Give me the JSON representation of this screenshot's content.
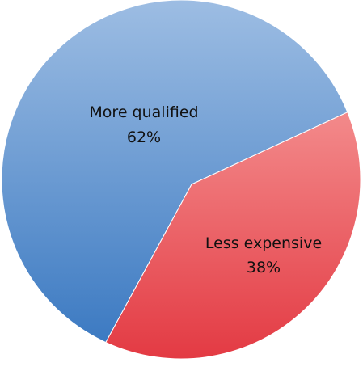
{
  "chart_data": {
    "type": "pie",
    "slices": [
      {
        "label": "More qualified",
        "value": 62,
        "value_label": "62%",
        "color": "#4a86c8"
      },
      {
        "label": "Less expensive",
        "value": 38,
        "value_label": "38%",
        "color": "#e8474f"
      }
    ]
  }
}
